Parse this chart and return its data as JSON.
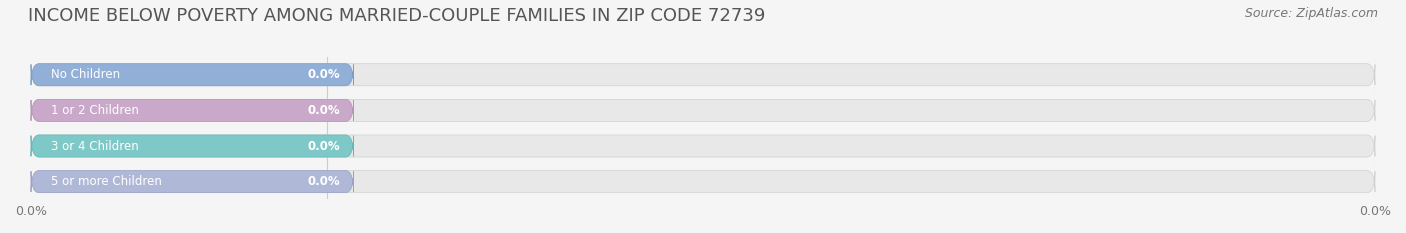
{
  "title": "INCOME BELOW POVERTY AMONG MARRIED-COUPLE FAMILIES IN ZIP CODE 72739",
  "source": "Source: ZipAtlas.com",
  "categories": [
    "No Children",
    "1 or 2 Children",
    "3 or 4 Children",
    "5 or more Children"
  ],
  "values": [
    0.0,
    0.0,
    0.0,
    0.0
  ],
  "bar_colors": [
    "#92afd7",
    "#c9a8c9",
    "#7ec8c8",
    "#b0b8d8"
  ],
  "bar_edge_colors": [
    "#7a9cc5",
    "#b892b8",
    "#60b8b8",
    "#9aa0c8"
  ],
  "background_color": "#f5f5f5",
  "bar_bg_color": "#e8e8e8",
  "label_color": "#555555",
  "value_color": "#ffffff",
  "title_color": "#555555",
  "xlim": [
    0,
    1
  ],
  "ylabel_fontsize": 9,
  "title_fontsize": 13,
  "tick_fontsize": 9,
  "source_fontsize": 9
}
